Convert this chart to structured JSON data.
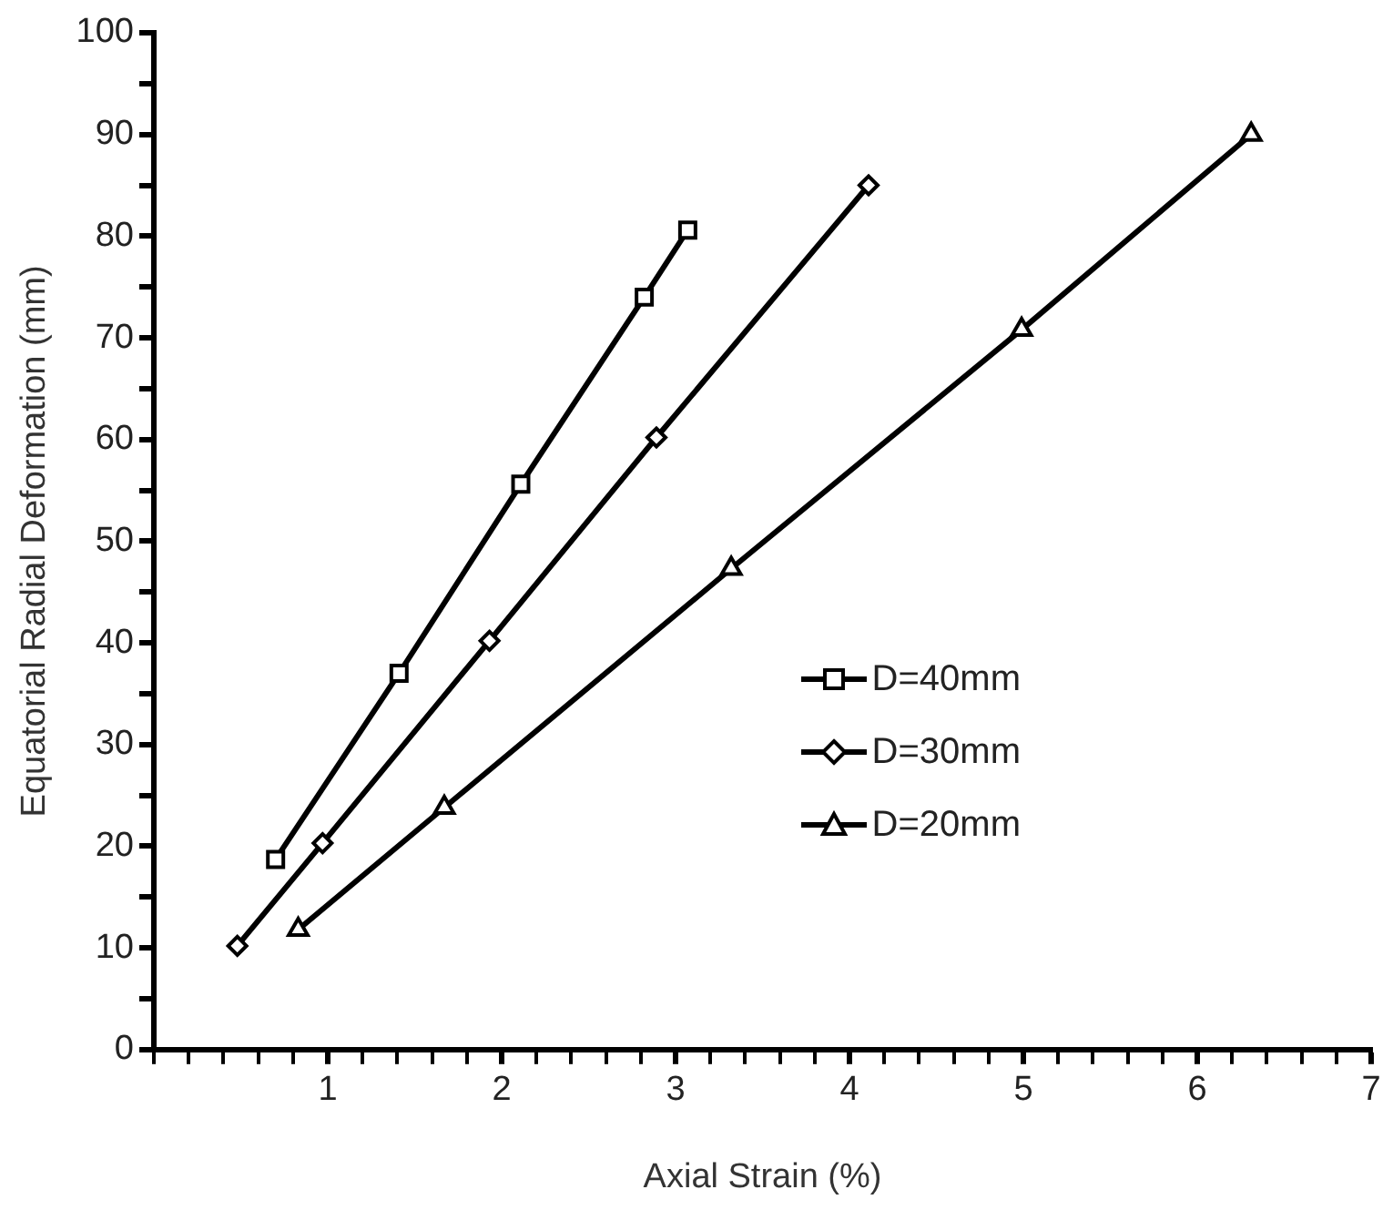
{
  "chart_data": {
    "type": "line",
    "xlabel": "Axial Strain (%)",
    "ylabel": "Equatorial Radial Deformation (mm)",
    "xlim": [
      0,
      7
    ],
    "ylim": [
      0,
      100
    ],
    "xticks": [
      {
        "value": 0,
        "label": null
      },
      {
        "value": 0.2,
        "label": null
      },
      {
        "value": 0.4,
        "label": null
      },
      {
        "value": 0.6,
        "label": null
      },
      {
        "value": 0.8,
        "label": null
      },
      1,
      {
        "value": 1.2,
        "label": null
      },
      {
        "value": 1.4,
        "label": null
      },
      {
        "value": 1.6,
        "label": null
      },
      {
        "value": 1.8,
        "label": null
      },
      2,
      {
        "value": 2.2,
        "label": null
      },
      {
        "value": 2.4,
        "label": null
      },
      {
        "value": 2.6,
        "label": null
      },
      {
        "value": 2.8,
        "label": null
      },
      3,
      {
        "value": 3.2,
        "label": null
      },
      {
        "value": 3.4,
        "label": null
      },
      {
        "value": 3.6,
        "label": null
      },
      {
        "value": 3.8,
        "label": null
      },
      4,
      {
        "value": 4.2,
        "label": null
      },
      {
        "value": 4.4,
        "label": null
      },
      {
        "value": 4.6,
        "label": null
      },
      {
        "value": 4.8,
        "label": null
      },
      5,
      {
        "value": 5.2,
        "label": null
      },
      {
        "value": 5.4,
        "label": null
      },
      {
        "value": 5.6,
        "label": null
      },
      {
        "value": 5.8,
        "label": null
      },
      6,
      {
        "value": 6.2,
        "label": null
      },
      {
        "value": 6.4,
        "label": null
      },
      {
        "value": 6.6,
        "label": null
      },
      {
        "value": 6.8,
        "label": null
      },
      7
    ],
    "yticks": [
      0,
      {
        "value": 5,
        "label": null
      },
      10,
      {
        "value": 15,
        "label": null
      },
      20,
      {
        "value": 25,
        "label": null
      },
      30,
      {
        "value": 35,
        "label": null
      },
      40,
      {
        "value": 45,
        "label": null
      },
      50,
      {
        "value": 55,
        "label": null
      },
      60,
      {
        "value": 65,
        "label": null
      },
      70,
      {
        "value": 75,
        "label": null
      },
      80,
      {
        "value": 85,
        "label": null
      },
      90,
      {
        "value": 95,
        "label": null
      },
      100
    ],
    "grid": false,
    "legend": "right",
    "line_style": "solid",
    "series": [
      {
        "name": "D=40mm",
        "color": "#000000",
        "marker": "square",
        "x": [
          0.7,
          1.41,
          2.11,
          2.82,
          3.07
        ],
        "values": [
          18.7,
          37.0,
          55.6,
          74.0,
          80.6
        ]
      },
      {
        "name": "D=30mm",
        "color": "#000000",
        "marker": "diamond",
        "x": [
          0.48,
          0.97,
          1.93,
          2.89,
          4.11
        ],
        "values": [
          10.2,
          20.3,
          40.2,
          60.2,
          85.0
        ]
      },
      {
        "name": "D=20mm",
        "color": "#000000",
        "marker": "triangle",
        "x": [
          0.83,
          1.67,
          3.32,
          4.99,
          6.31
        ],
        "values": [
          11.8,
          23.8,
          47.3,
          70.8,
          90.0
        ]
      }
    ]
  }
}
